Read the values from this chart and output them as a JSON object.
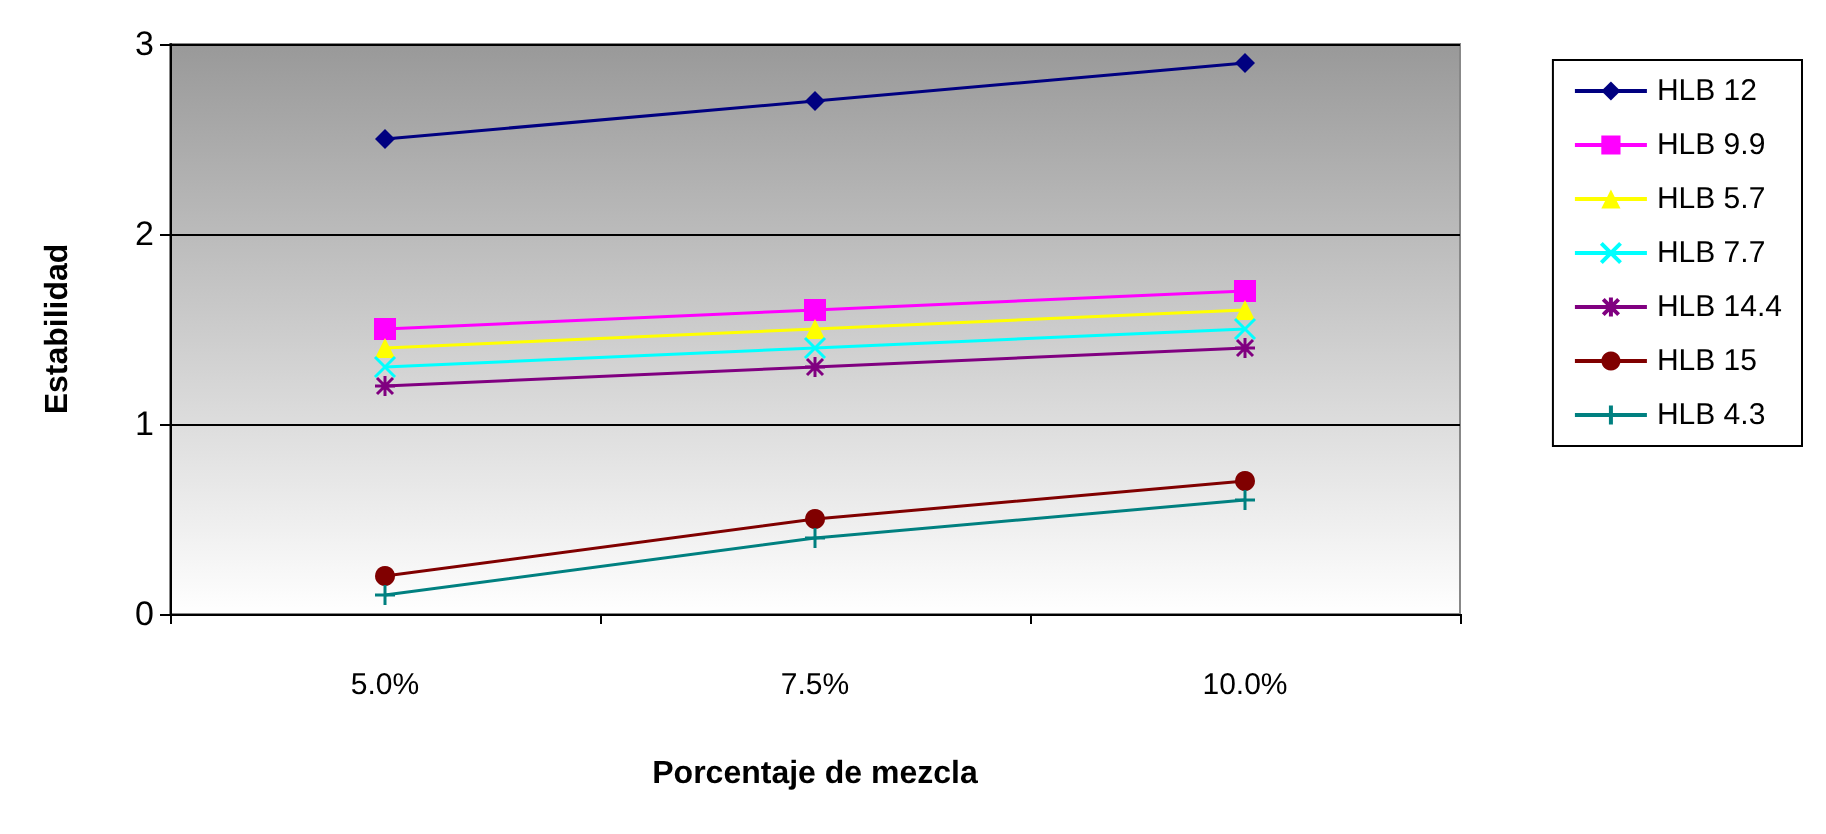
{
  "chart_data": {
    "type": "line",
    "xlabel": "Porcentaje de mezcla",
    "ylabel": "Estabilidad",
    "categories": [
      "5.0%",
      "7.5%",
      "10.0%"
    ],
    "ylim": [
      0,
      3
    ],
    "yticks": [
      0,
      1,
      2,
      3
    ],
    "grid": "y",
    "legend": "right",
    "series": [
      {
        "name": "HLB 12",
        "color": "#000080",
        "marker": "diamond",
        "values": [
          2.5,
          2.7,
          2.9
        ]
      },
      {
        "name": "HLB 9.9",
        "color": "#ff00ff",
        "marker": "square",
        "values": [
          1.5,
          1.6,
          1.7
        ]
      },
      {
        "name": "HLB 5.7",
        "color": "#ffff00",
        "marker": "triangle",
        "values": [
          1.4,
          1.5,
          1.6
        ]
      },
      {
        "name": "HLB 7.7",
        "color": "#00ffff",
        "marker": "cross",
        "values": [
          1.3,
          1.4,
          1.5
        ]
      },
      {
        "name": "HLB 14.4",
        "color": "#800080",
        "marker": "cross",
        "values": [
          1.2,
          1.3,
          1.4
        ]
      },
      {
        "name": "HLB 15",
        "color": "#800000",
        "marker": "circle",
        "values": [
          0.2,
          0.5,
          0.7
        ]
      },
      {
        "name": "HLB 4.3",
        "color": "#008080",
        "marker": "plus",
        "values": [
          0.1,
          0.4,
          0.6
        ]
      }
    ]
  }
}
